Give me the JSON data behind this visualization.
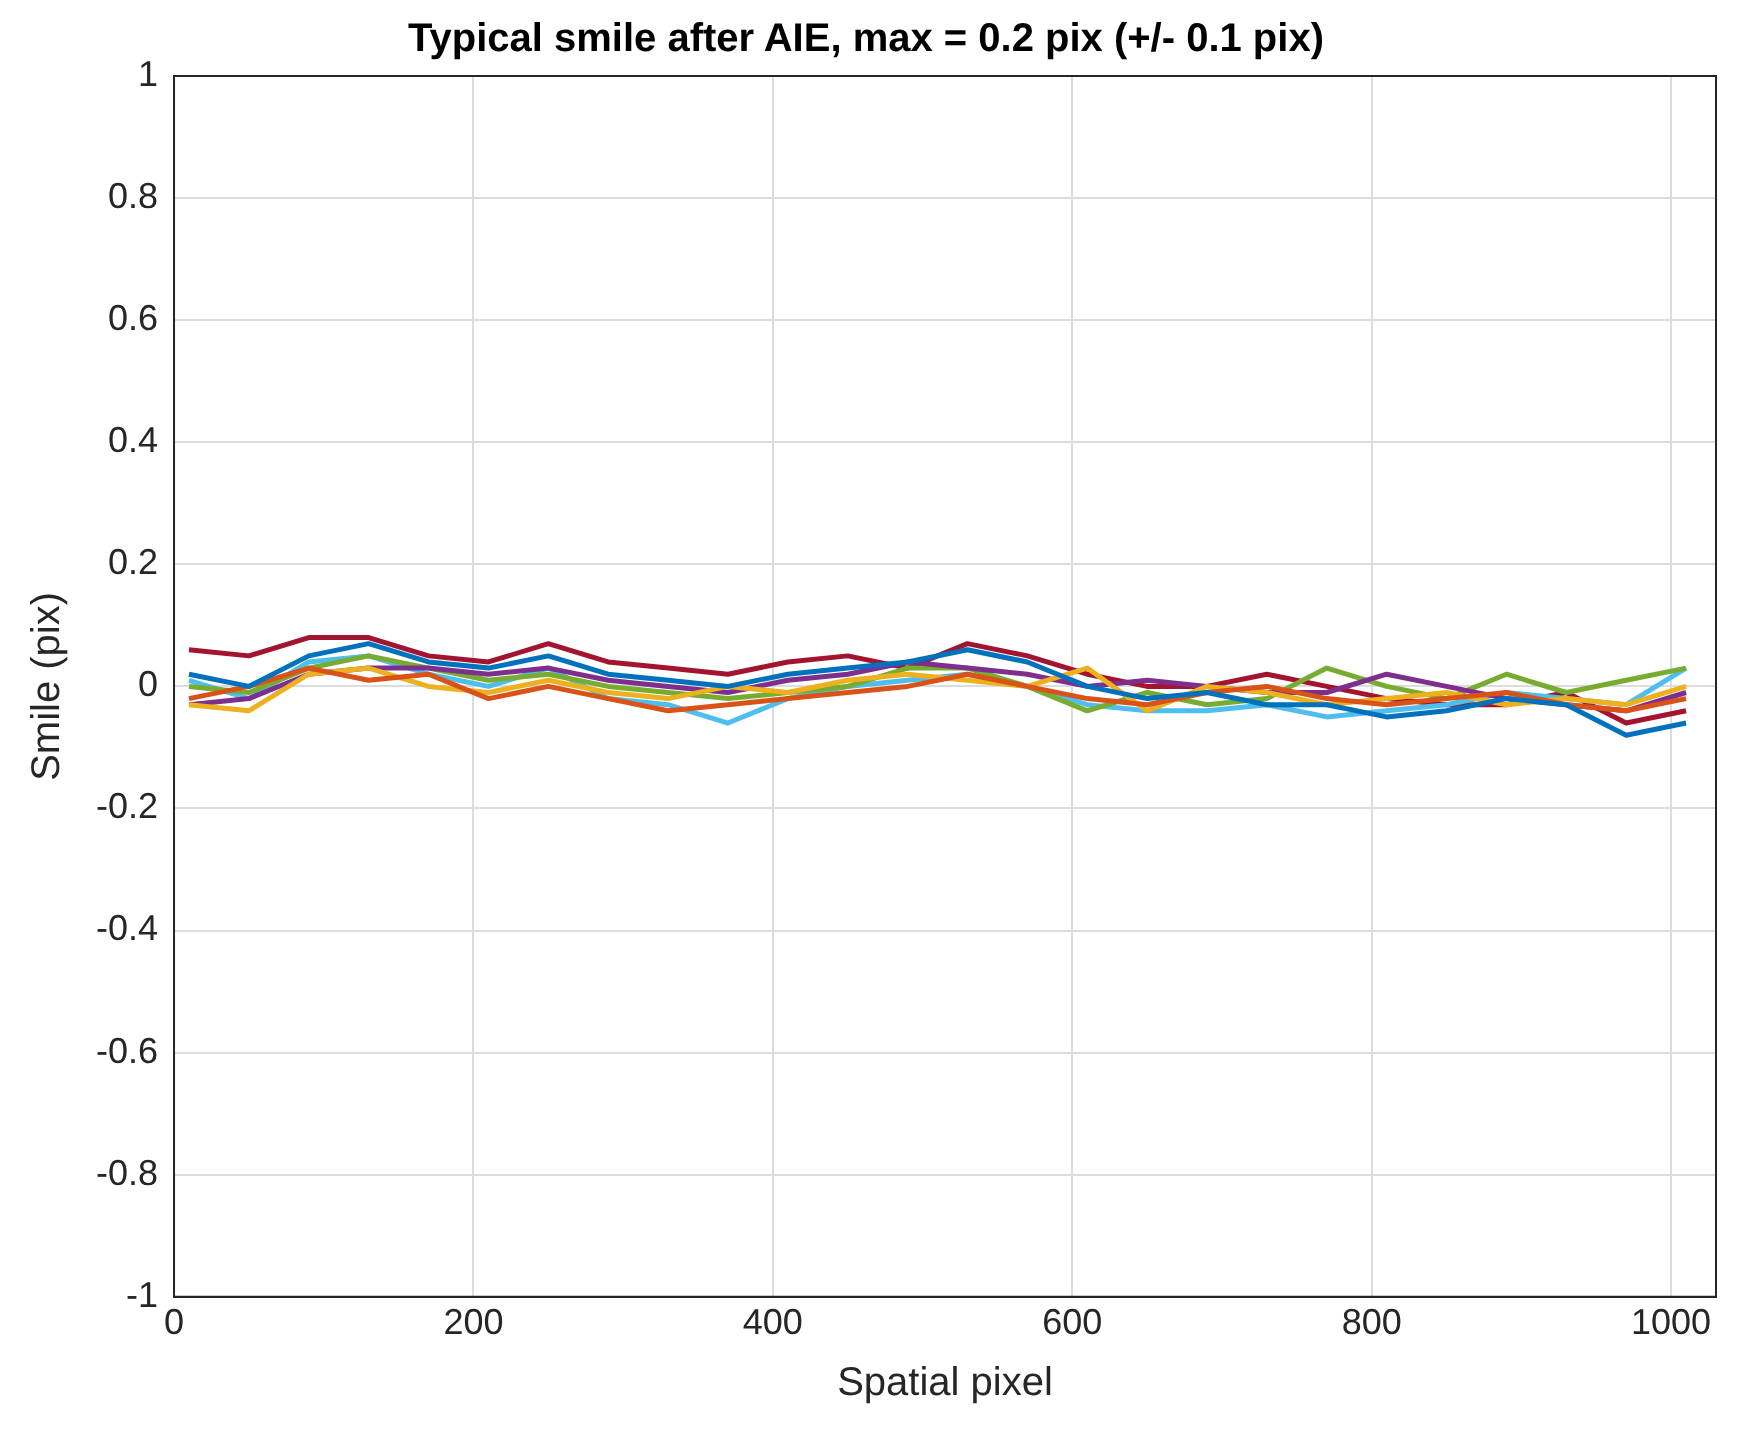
{
  "chart_data": {
    "type": "line",
    "title": "Typical smile after AIE, max = 0.2 pix (+/- 0.1 pix)",
    "xlabel": "Spatial pixel",
    "ylabel": "Smile (pix)",
    "x": [
      10,
      50,
      90,
      130,
      170,
      210,
      250,
      290,
      330,
      370,
      410,
      450,
      490,
      530,
      570,
      610,
      650,
      690,
      730,
      770,
      810,
      850,
      890,
      930,
      970,
      1010
    ],
    "series": [
      {
        "color": "#0072bd",
        "values": [
          0.02,
          0.0,
          0.05,
          0.07,
          0.04,
          0.03,
          0.05,
          0.02,
          0.01,
          0.0,
          0.02,
          0.03,
          0.04,
          0.06,
          0.04,
          0.0,
          -0.02,
          -0.01,
          -0.03,
          -0.03,
          -0.05,
          -0.04,
          -0.02,
          -0.03,
          -0.08,
          -0.06
        ]
      },
      {
        "color": "#d95319",
        "values": [
          -0.02,
          0.0,
          0.03,
          0.01,
          0.02,
          -0.02,
          0.0,
          -0.02,
          -0.04,
          -0.03,
          -0.02,
          -0.01,
          0.0,
          0.02,
          0.0,
          -0.02,
          -0.03,
          -0.01,
          0.0,
          -0.02,
          -0.03,
          -0.02,
          -0.01,
          -0.03,
          -0.04,
          -0.02
        ]
      },
      {
        "color": "#edb120",
        "values": [
          -0.03,
          -0.04,
          0.02,
          0.03,
          0.0,
          -0.01,
          0.01,
          -0.01,
          -0.02,
          0.0,
          -0.01,
          0.01,
          0.02,
          0.01,
          0.0,
          0.03,
          -0.04,
          0.0,
          -0.01,
          -0.03,
          -0.02,
          -0.01,
          -0.03,
          -0.02,
          -0.03,
          0.0
        ]
      },
      {
        "color": "#7e2f8e",
        "values": [
          -0.03,
          -0.02,
          0.02,
          0.03,
          0.03,
          0.02,
          0.03,
          0.01,
          0.0,
          -0.01,
          0.01,
          0.02,
          0.04,
          0.03,
          0.02,
          0.0,
          0.01,
          0.0,
          -0.01,
          -0.01,
          0.02,
          0.0,
          -0.02,
          -0.03,
          -0.04,
          -0.01
        ]
      },
      {
        "color": "#77ac30",
        "values": [
          0.0,
          -0.01,
          0.03,
          0.05,
          0.03,
          0.01,
          0.02,
          0.0,
          -0.01,
          -0.02,
          -0.01,
          0.0,
          0.03,
          0.03,
          0.0,
          -0.04,
          -0.01,
          -0.03,
          -0.02,
          0.03,
          0.0,
          -0.02,
          0.02,
          -0.01,
          0.01,
          0.03
        ]
      },
      {
        "color": "#4dbeee",
        "values": [
          0.01,
          -0.02,
          0.04,
          0.05,
          0.02,
          0.0,
          0.03,
          -0.02,
          -0.03,
          -0.06,
          -0.02,
          0.0,
          0.01,
          0.02,
          0.0,
          -0.03,
          -0.04,
          -0.04,
          -0.03,
          -0.05,
          -0.04,
          -0.03,
          -0.01,
          -0.02,
          -0.03,
          0.03
        ]
      },
      {
        "color": "#a2142f",
        "values": [
          0.06,
          0.05,
          0.08,
          0.08,
          0.05,
          0.04,
          0.07,
          0.04,
          0.03,
          0.02,
          0.04,
          0.05,
          0.03,
          0.07,
          0.05,
          0.02,
          0.0,
          0.0,
          0.02,
          0.0,
          -0.02,
          -0.03,
          -0.03,
          -0.01,
          -0.06,
          -0.04
        ]
      }
    ],
    "xlim": [
      0,
      1030
    ],
    "xticks": [
      0,
      200,
      400,
      600,
      800,
      1000
    ],
    "ylim": [
      -1,
      1
    ],
    "yticks": [
      -1,
      -0.8,
      -0.6,
      -0.4,
      -0.2,
      0,
      0.2,
      0.4,
      0.6,
      0.8,
      1
    ],
    "grid": true,
    "legend": false,
    "marker": "none",
    "line_style": "solid"
  }
}
